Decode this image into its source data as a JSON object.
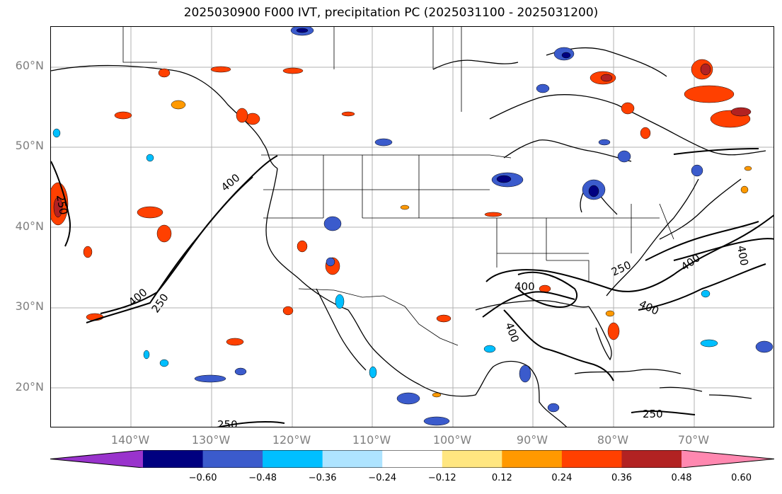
{
  "title": "2025030900 F000 IVT, precipitation PC (2025031100 - 2025031200)",
  "map": {
    "projection": "equirectangular",
    "lon_range": [
      -150,
      -60
    ],
    "lat_range": [
      15,
      65
    ],
    "gridlines": true,
    "lat_labels": [
      "60°N",
      "50°N",
      "40°N",
      "30°N",
      "20°N"
    ],
    "lon_labels": [
      "140°W",
      "130°W",
      "120°W",
      "110°W",
      "100°W",
      "90°W",
      "80°W",
      "70°W"
    ],
    "ivt_contour_labels": [
      "400",
      "250",
      "400",
      "250",
      "400",
      "250",
      "400",
      "400",
      "250",
      "400",
      "400",
      "250",
      "250",
      "400"
    ]
  },
  "colorbar": {
    "ticks": [
      "−0.60",
      "−0.48",
      "−0.36",
      "−0.24",
      "−0.12",
      "0.12",
      "0.24",
      "0.36",
      "0.48",
      "0.60"
    ],
    "colors": [
      "#9933cc",
      "#000080",
      "#3b5bcc",
      "#00bfff",
      "#aee4ff",
      "#ffffff",
      "#ffe680",
      "#ff9900",
      "#ff4000",
      "#b22222",
      "#ff88b0"
    ],
    "extend": "both"
  }
}
